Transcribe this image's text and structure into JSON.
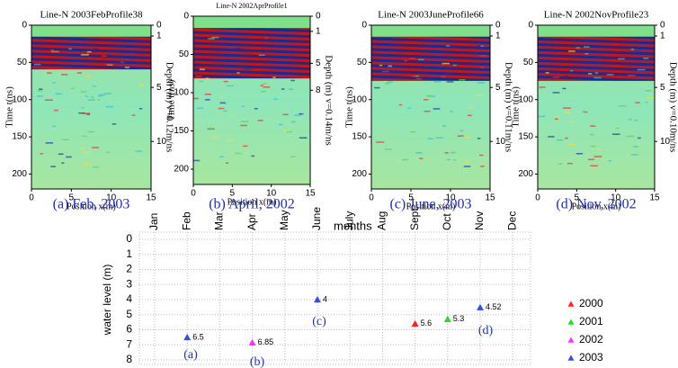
{
  "panels": [
    {
      "title": "Line-N 2003FebProfile38",
      "y_label": "Time t(ns)",
      "y2_label": "Depth (m) v=0.12m/ns",
      "x_label": "Position x(m)",
      "caption": "(a) Feb, 2003",
      "yticks": [
        0,
        50,
        100,
        150,
        200
      ],
      "xticks": [
        0,
        5,
        10,
        15
      ],
      "y2ticks": [
        0,
        1,
        5,
        10
      ]
    },
    {
      "title": "Line-N 2002AprProfile1",
      "y_label": "Time t(ns)",
      "y2_label": "Depth (m) v=0.14m/ns",
      "x_label": "Position x(m)",
      "caption": "(b) April, 2002",
      "yticks": [
        0,
        50,
        100,
        150,
        200
      ],
      "xticks": [
        0,
        5,
        10,
        15
      ],
      "y2ticks": [
        0,
        1,
        5,
        8
      ]
    },
    {
      "title": "Line-N 2003JuneProfile66",
      "y_label": "Time t(ns)",
      "y2_label": "Depth (m) v=0.11m/ns",
      "x_label": "Position x(m)",
      "caption": "(c) June, 2003",
      "yticks": [
        0,
        50,
        100,
        150,
        200
      ],
      "xticks": [
        0,
        5,
        10,
        15
      ],
      "y2ticks": [
        0,
        1,
        5,
        10
      ]
    },
    {
      "title": "Line-N 2002NovProfile23",
      "y_label": "Time t(ns)",
      "y2_label": "Depth (m) v=0.10m/ns",
      "x_label": "Position x(m)",
      "caption": "(d) Nov, 2002",
      "yticks": [
        0,
        50,
        100,
        150,
        200
      ],
      "xticks": [
        0,
        5,
        10,
        15
      ],
      "y2ticks": [
        0,
        1,
        5,
        10
      ]
    }
  ],
  "chart_data": {
    "type": "scatter",
    "x_label": "months",
    "y_label": "water level (m)",
    "categories": [
      "Jan",
      "Feb",
      "Mar",
      "Apr",
      "May",
      "June",
      "July",
      "Aug",
      "Sept",
      "Oct",
      "Nov",
      "Dec"
    ],
    "series": [
      {
        "name": "2000",
        "color": "#ff2020",
        "values": [
          null,
          null,
          null,
          null,
          null,
          null,
          null,
          null,
          5.6,
          null,
          null,
          null
        ]
      },
      {
        "name": "2001",
        "color": "#20e020",
        "values": [
          null,
          null,
          null,
          null,
          null,
          null,
          null,
          null,
          null,
          5.3,
          null,
          null
        ]
      },
      {
        "name": "2002",
        "color": "#ff30ff",
        "values": [
          null,
          null,
          null,
          6.85,
          null,
          null,
          null,
          null,
          null,
          null,
          null,
          null
        ]
      },
      {
        "name": "2003",
        "color": "#3050e0",
        "values": [
          null,
          6.5,
          null,
          null,
          null,
          4,
          null,
          null,
          null,
          null,
          4.52,
          null
        ]
      }
    ],
    "ylim": [
      0,
      8
    ],
    "y_inverted": true,
    "yticks": [
      0,
      1,
      2,
      3,
      4,
      5,
      6,
      7,
      8
    ],
    "grid": true,
    "annotations": [
      "(a)",
      "(b)",
      "(c)",
      "(d)"
    ]
  }
}
